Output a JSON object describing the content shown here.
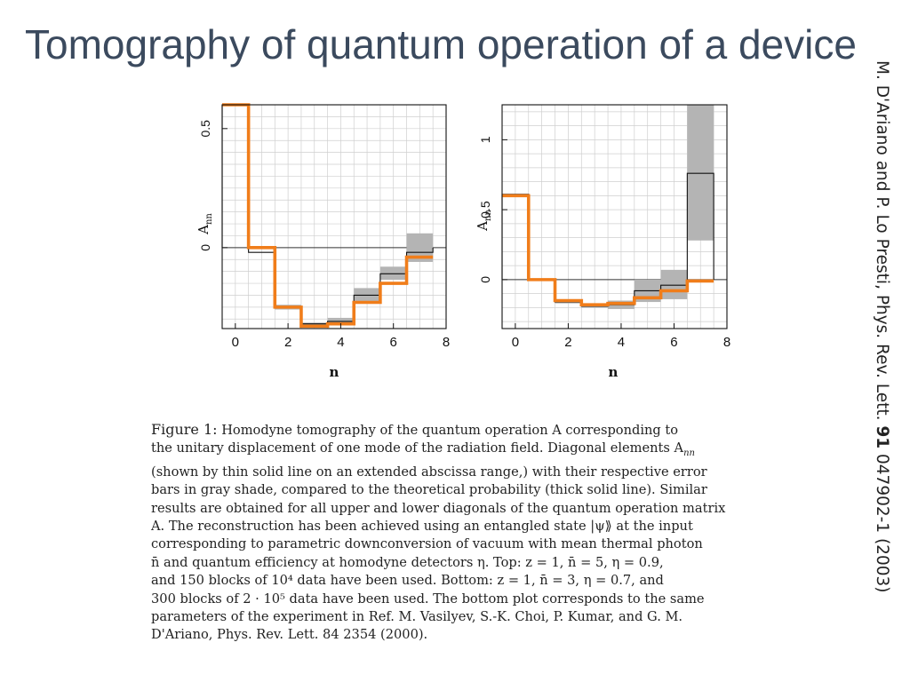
{
  "slide": {
    "title": "Tomography of quantum operation of a device",
    "citation_authors": "M. D'Ariano and P. Lo Presti, Phys. Rev. Lett. ",
    "citation_volume": "91",
    "citation_rest": " 047902-1 (2003)"
  },
  "caption": {
    "label": "Figure 1:",
    "lines": [
      "Homodyne tomography of the quantum operation A corresponding to",
      "the unitary displacement of one mode of the radiation field. Diagonal elements A",
      "(shown by thin solid line on an extended abscissa range,) with their respective error",
      "bars in gray shade, compared to the theoretical probability (thick solid line). Similar",
      "results are obtained for all upper and lower diagonals of the quantum operation matrix",
      "A. The reconstruction has been achieved using an entangled state |ψ⟫ at the input",
      "corresponding to parametric downconversion of vacuum with mean thermal photon",
      "n̄ and quantum efficiency at homodyne detectors η. Top: z = 1, n̄ = 5, η = 0.9,",
      "and 150 blocks of 10⁴ data have been used. Bottom: z = 1, n̄ = 3, η = 0.7, and",
      "300 blocks of 2 · 10⁵ data have been used. The bottom plot corresponds to the same",
      "parameters of the experiment in Ref. M. Vasilyev, S.-K. Choi, P. Kumar, and G. M.",
      "D'Ariano, Phys. Rev. Lett. 84 2354 (2000)."
    ],
    "subscript_nn": "nn"
  },
  "chart_data": [
    {
      "type": "step",
      "xlabel": "n",
      "ylabel": "Ann",
      "xlim": [
        -0.5,
        8
      ],
      "ylim": [
        -0.34,
        0.6
      ],
      "xticks": [
        "0",
        "2",
        "4",
        "6",
        "8"
      ],
      "yticks": [
        {
          "value": 0,
          "label": "0"
        },
        {
          "value": 0.5,
          "label": "0.5"
        }
      ],
      "grid": true,
      "reconstructed": [
        0.63,
        -0.02,
        -0.25,
        -0.32,
        -0.31,
        -0.2,
        -0.11,
        -0.02
      ],
      "error_low": [
        null,
        null,
        -0.26,
        -0.33,
        -0.32,
        -0.225,
        -0.135,
        -0.06
      ],
      "error_high": [
        null,
        null,
        -0.24,
        -0.315,
        -0.295,
        -0.17,
        -0.08,
        0.06
      ],
      "theory": [
        0.63,
        0.0,
        -0.25,
        -0.33,
        -0.32,
        -0.23,
        -0.15,
        -0.04
      ]
    },
    {
      "type": "step",
      "xlabel": "n",
      "ylabel": "Ann",
      "xlim": [
        -0.5,
        8
      ],
      "ylim": [
        -0.35,
        1.25
      ],
      "xticks": [
        "0",
        "2",
        "4",
        "6",
        "8"
      ],
      "yticks": [
        {
          "value": 0,
          "label": "0"
        },
        {
          "value": 0.5,
          "label": "0.5"
        },
        {
          "value": 1,
          "label": "1"
        }
      ],
      "grid": true,
      "reconstructed": [
        0.61,
        0.0,
        -0.16,
        -0.19,
        -0.18,
        -0.08,
        -0.04,
        0.76
      ],
      "error_low": [
        null,
        null,
        -0.17,
        -0.2,
        -0.21,
        -0.16,
        -0.14,
        0.28
      ],
      "error_high": [
        null,
        null,
        -0.15,
        -0.18,
        -0.15,
        0.0,
        0.07,
        1.25
      ],
      "theory": [
        0.6,
        0.0,
        -0.15,
        -0.18,
        -0.17,
        -0.13,
        -0.08,
        -0.01
      ]
    }
  ],
  "colors": {
    "theory": "#f07d1a",
    "error_band": "#b4b4b4",
    "reconstructed": "#111111",
    "grid": "#cfcfcf",
    "title": "#3b4a5e"
  }
}
